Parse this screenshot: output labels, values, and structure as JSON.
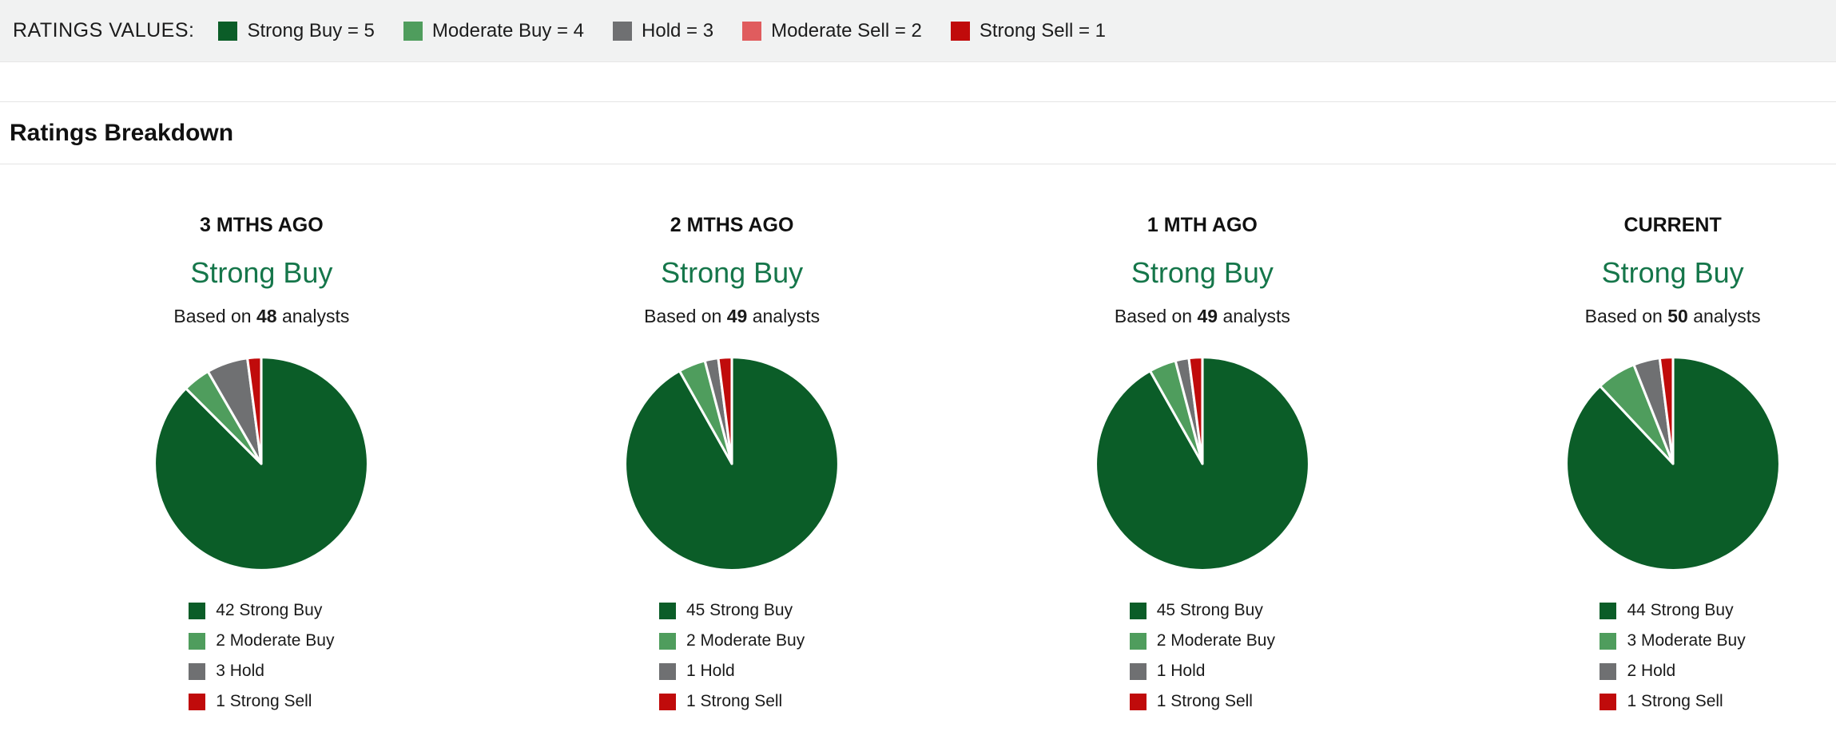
{
  "colors": {
    "strong_buy": "#0b5d28",
    "moderate_buy": "#4f9d5d",
    "hold": "#6f7072",
    "moderate_sell": "#e05c5e",
    "strong_sell": "#c00b0b",
    "consensus_text": "#15764a",
    "topbar_bg": "#f1f2f2"
  },
  "ratings_bar": {
    "label": "RATINGS VALUES:",
    "items": [
      {
        "label": "Strong Buy = 5",
        "color": "#0b5d28"
      },
      {
        "label": "Moderate Buy = 4",
        "color": "#4f9d5d"
      },
      {
        "label": "Hold = 3",
        "color": "#6f7072"
      },
      {
        "label": "Moderate Sell = 2",
        "color": "#e05c5e"
      },
      {
        "label": "Strong Sell = 1",
        "color": "#c00b0b"
      }
    ]
  },
  "section": {
    "title": "Ratings Breakdown"
  },
  "chart_data": [
    {
      "type": "pie",
      "title": "3 MTHS AGO",
      "consensus": "Strong Buy",
      "based_on": {
        "prefix": "Based on",
        "count": "48",
        "suffix": "analysts"
      },
      "slices": [
        {
          "label": "Strong Buy",
          "value": 42,
          "color": "#0b5d28"
        },
        {
          "label": "Moderate Buy",
          "value": 2,
          "color": "#4f9d5d"
        },
        {
          "label": "Hold",
          "value": 3,
          "color": "#6f7072"
        },
        {
          "label": "Strong Sell",
          "value": 1,
          "color": "#c00b0b"
        }
      ]
    },
    {
      "type": "pie",
      "title": "2 MTHS AGO",
      "consensus": "Strong Buy",
      "based_on": {
        "prefix": "Based on",
        "count": "49",
        "suffix": "analysts"
      },
      "slices": [
        {
          "label": "Strong Buy",
          "value": 45,
          "color": "#0b5d28"
        },
        {
          "label": "Moderate Buy",
          "value": 2,
          "color": "#4f9d5d"
        },
        {
          "label": "Hold",
          "value": 1,
          "color": "#6f7072"
        },
        {
          "label": "Strong Sell",
          "value": 1,
          "color": "#c00b0b"
        }
      ]
    },
    {
      "type": "pie",
      "title": "1 MTH AGO",
      "consensus": "Strong Buy",
      "based_on": {
        "prefix": "Based on",
        "count": "49",
        "suffix": "analysts"
      },
      "slices": [
        {
          "label": "Strong Buy",
          "value": 45,
          "color": "#0b5d28"
        },
        {
          "label": "Moderate Buy",
          "value": 2,
          "color": "#4f9d5d"
        },
        {
          "label": "Hold",
          "value": 1,
          "color": "#6f7072"
        },
        {
          "label": "Strong Sell",
          "value": 1,
          "color": "#c00b0b"
        }
      ]
    },
    {
      "type": "pie",
      "title": "CURRENT",
      "consensus": "Strong Buy",
      "based_on": {
        "prefix": "Based on",
        "count": "50",
        "suffix": "analysts"
      },
      "slices": [
        {
          "label": "Strong Buy",
          "value": 44,
          "color": "#0b5d28"
        },
        {
          "label": "Moderate Buy",
          "value": 3,
          "color": "#4f9d5d"
        },
        {
          "label": "Hold",
          "value": 2,
          "color": "#6f7072"
        },
        {
          "label": "Strong Sell",
          "value": 1,
          "color": "#c00b0b"
        }
      ]
    }
  ]
}
